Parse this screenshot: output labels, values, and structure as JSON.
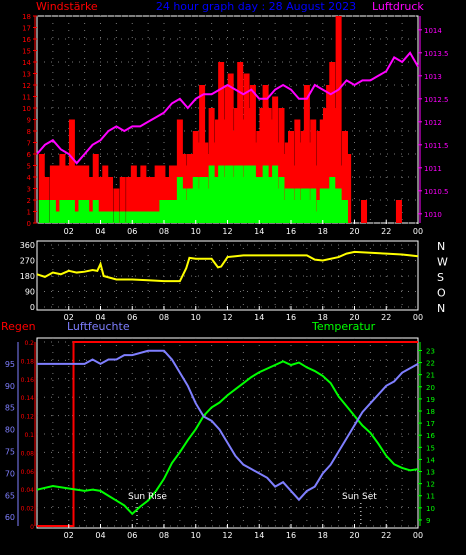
{
  "header": {
    "title": "24 hour graph day : 28 August 2023",
    "left_label": "Windstärke",
    "right_label": "Luftdruck",
    "colors": {
      "title": "#0000ff",
      "wind": "#ff0000",
      "pressure": "#ff00ff"
    }
  },
  "bottom_header": {
    "rain_label": "Regen",
    "humidity_label": "Luftfeuchte",
    "temperature_label": "Temperatur",
    "colors": {
      "rain": "#ff0000",
      "humidity": "#7f7fff",
      "temperature": "#00ff00"
    }
  },
  "annotations": {
    "sun_rise": "Sun Rise",
    "sun_set": "Sun Set"
  },
  "chart_data": [
    {
      "type": "bar",
      "title": "24 hour graph day : 28 August 2023",
      "x_ticks": [
        "02",
        "04",
        "06",
        "08",
        "10",
        "12",
        "14",
        "16",
        "18",
        "20",
        "22",
        "00"
      ],
      "y_left": {
        "label": "Windstärke",
        "ticks": [
          "0",
          "1",
          "2",
          "3",
          "4",
          "5",
          "6",
          "7",
          "8",
          "9",
          "10",
          "11",
          "12",
          "13",
          "14",
          "15",
          "16",
          "17",
          "18"
        ],
        "range": [
          0,
          18
        ]
      },
      "y_right": {
        "label": "Luftdruck",
        "ticks": [
          "1010",
          "1010.5",
          "1011",
          "1011.5",
          "1012",
          "1012.5",
          "1013",
          "1013.5",
          "1014"
        ],
        "range": [
          1009.8,
          1014.3
        ]
      },
      "series": [
        {
          "name": "Windstärke",
          "kind": "gust-bars",
          "color": "#ff0000",
          "x": [
            0.3,
            0.6,
            1.0,
            1.3,
            1.6,
            1.9,
            2.2,
            2.5,
            2.8,
            3.1,
            3.4,
            3.7,
            4.0,
            4.3,
            4.6,
            5.0,
            5.4,
            5.8,
            6.1,
            6.4,
            6.7,
            7.0,
            7.3,
            7.6,
            7.9,
            8.2,
            8.5,
            8.8,
            9.0,
            9.2,
            9.4,
            9.6,
            9.8,
            10.0,
            10.2,
            10.4,
            10.6,
            10.8,
            11.0,
            11.2,
            11.4,
            11.6,
            11.8,
            12.0,
            12.2,
            12.4,
            12.6,
            12.8,
            13.0,
            13.2,
            13.4,
            13.6,
            13.8,
            14.0,
            14.2,
            14.4,
            14.6,
            14.8,
            15.0,
            15.2,
            15.4,
            15.6,
            15.8,
            16.0,
            16.2,
            16.4,
            16.6,
            16.8,
            17.0,
            17.2,
            17.4,
            17.6,
            17.8,
            18.0,
            18.2,
            18.4,
            18.6,
            18.8,
            19.0,
            19.2,
            19.4,
            19.6,
            20.6,
            22.8
          ],
          "values": [
            6,
            4,
            5,
            5,
            6,
            5,
            9,
            5,
            5,
            5,
            4,
            6,
            4,
            5,
            4,
            3,
            4,
            4,
            5,
            4,
            5,
            4,
            4,
            5,
            5,
            4,
            5,
            5,
            9,
            6,
            5,
            6,
            6,
            8,
            7,
            12,
            7,
            6,
            10,
            7,
            9,
            14,
            9,
            12,
            13,
            8,
            10,
            14,
            9,
            13,
            10,
            12,
            7,
            8,
            10,
            12,
            10,
            9,
            11,
            7,
            10,
            6,
            7,
            8,
            5,
            9,
            7,
            8,
            12,
            7,
            9,
            5,
            8,
            9,
            10,
            12,
            14,
            10,
            18,
            5,
            8,
            6,
            2,
            2
          ]
        },
        {
          "name": "Windstärke (avg)",
          "kind": "avg-bars",
          "color": "#00ff00",
          "x": [
            0.3,
            0.6,
            1.0,
            1.3,
            1.6,
            1.9,
            2.2,
            2.5,
            2.8,
            3.1,
            3.4,
            3.7,
            4.0,
            4.3,
            4.6,
            5.0,
            5.4,
            5.8,
            6.1,
            6.4,
            6.7,
            7.0,
            7.3,
            7.6,
            7.9,
            8.2,
            8.5,
            8.8,
            9.0,
            9.2,
            9.4,
            9.6,
            9.8,
            10.0,
            10.2,
            10.4,
            10.6,
            10.8,
            11.0,
            11.2,
            11.4,
            11.6,
            11.8,
            12.0,
            12.2,
            12.4,
            12.6,
            12.8,
            13.0,
            13.2,
            13.4,
            13.6,
            13.8,
            14.0,
            14.2,
            14.4,
            14.6,
            14.8,
            15.0,
            15.2,
            15.4,
            15.6,
            15.8,
            16.0,
            16.2,
            16.4,
            16.6,
            16.8,
            17.0,
            17.2,
            17.4,
            17.6,
            17.8,
            18.0,
            18.2,
            18.4,
            18.6,
            18.8,
            19.0,
            19.2,
            19.4
          ],
          "values": [
            2,
            2,
            2,
            1,
            2,
            2,
            2,
            1,
            2,
            2,
            1,
            2,
            1,
            1,
            1,
            1,
            1,
            1,
            1,
            1,
            1,
            1,
            1,
            1,
            2,
            2,
            2,
            2,
            4,
            3,
            2,
            3,
            3,
            4,
            3,
            4,
            4,
            3,
            5,
            4,
            4,
            5,
            4,
            5,
            5,
            4,
            5,
            5,
            4,
            5,
            5,
            5,
            4,
            4,
            4,
            5,
            4,
            4,
            5,
            3,
            4,
            2,
            3,
            3,
            2,
            3,
            2,
            3,
            3,
            2,
            3,
            1,
            2,
            3,
            3,
            3,
            4,
            3,
            3,
            2,
            2
          ]
        },
        {
          "name": "Luftdruck",
          "kind": "line",
          "color": "#ff00ff",
          "x": [
            0,
            0.5,
            1,
            1.5,
            2,
            2.5,
            3,
            3.5,
            4,
            4.5,
            5,
            5.5,
            6,
            6.5,
            7,
            7.5,
            8,
            8.5,
            9,
            9.5,
            10,
            10.5,
            11,
            11.5,
            12,
            12.5,
            13,
            13.5,
            14,
            14.5,
            15,
            15.5,
            16,
            16.5,
            17,
            17.5,
            18,
            18.5,
            19,
            19.5,
            20,
            20.5,
            21,
            21.5,
            22,
            22.5,
            23,
            23.5,
            24
          ],
          "values": [
            1011.3,
            1011.5,
            1011.6,
            1011.4,
            1011.3,
            1011.1,
            1011.3,
            1011.5,
            1011.6,
            1011.8,
            1011.9,
            1011.8,
            1011.9,
            1011.9,
            1012.0,
            1012.1,
            1012.2,
            1012.4,
            1012.5,
            1012.3,
            1012.5,
            1012.6,
            1012.6,
            1012.7,
            1012.8,
            1012.7,
            1012.6,
            1012.7,
            1012.5,
            1012.5,
            1012.7,
            1012.8,
            1012.7,
            1012.5,
            1012.5,
            1012.8,
            1012.7,
            1012.6,
            1012.7,
            1012.9,
            1012.8,
            1012.9,
            1012.9,
            1013.0,
            1013.1,
            1013.4,
            1013.3,
            1013.5,
            1013.2
          ]
        }
      ]
    },
    {
      "type": "line",
      "title": "",
      "x_ticks": [
        "02",
        "04",
        "06",
        "08",
        "10",
        "12",
        "14",
        "16",
        "18",
        "20",
        "22",
        "00"
      ],
      "y_left": {
        "ticks": [
          "0",
          "90",
          "180",
          "270",
          "360"
        ],
        "range": [
          0,
          360
        ]
      },
      "y_right": {
        "ticks": [
          "N",
          "W",
          "S",
          "O",
          "N"
        ]
      },
      "series": [
        {
          "name": "Windrichtung",
          "color": "#ffff00",
          "x": [
            0,
            0.5,
            1,
            1.5,
            2,
            2.5,
            3,
            3.5,
            3.8,
            4.0,
            4.2,
            5,
            6,
            7,
            8,
            9,
            9.4,
            9.6,
            10,
            11,
            11.4,
            11.6,
            12,
            12.5,
            13,
            14,
            15,
            16,
            17,
            17.5,
            18,
            19,
            19.5,
            20,
            21,
            22,
            23,
            24
          ],
          "values": [
            190,
            175,
            200,
            190,
            210,
            200,
            205,
            215,
            210,
            250,
            180,
            160,
            160,
            155,
            150,
            150,
            225,
            285,
            280,
            280,
            230,
            235,
            290,
            295,
            300,
            300,
            300,
            300,
            300,
            275,
            270,
            290,
            310,
            320,
            315,
            310,
            305,
            295
          ]
        }
      ]
    },
    {
      "type": "line",
      "title": "",
      "x_ticks": [
        "02",
        "04",
        "06",
        "08",
        "10",
        "12",
        "14",
        "16",
        "18",
        "20",
        "22",
        "00"
      ],
      "y_left_humidity": {
        "label": "Luftfeuchte",
        "ticks": [
          "60",
          "65",
          "70",
          "75",
          "80",
          "85",
          "90",
          "95"
        ],
        "range": [
          58,
          100
        ]
      },
      "y_left_rain": {
        "label": "Regen",
        "ticks": [
          "0",
          "0.02",
          "0.04",
          "0.06",
          "0.08",
          "0.1",
          "0.12",
          "0.14",
          "0.16",
          "0.18",
          "0.2"
        ],
        "range": [
          0,
          0.2
        ]
      },
      "y_right": {
        "label": "Temperatur",
        "ticks": [
          "9",
          "10",
          "11",
          "12",
          "13",
          "14",
          "15",
          "16",
          "17",
          "18",
          "19",
          "20",
          "21",
          "22",
          "23"
        ],
        "range": [
          8.5,
          23.7
        ]
      },
      "series": [
        {
          "name": "Regen",
          "color": "#ff0000",
          "x": [
            0,
            2.3,
            2.3,
            24
          ],
          "values": [
            0,
            0,
            0.2,
            0.2
          ]
        },
        {
          "name": "Luftfeuchte",
          "color": "#7f7fff",
          "x": [
            0,
            1,
            2,
            2.3,
            3,
            3.5,
            4,
            4.5,
            5,
            5.5,
            6,
            7,
            8,
            8.5,
            9,
            9.5,
            10,
            10.5,
            11,
            11.5,
            12,
            12.5,
            13,
            13.5,
            14,
            14.5,
            15,
            15.5,
            16,
            16.5,
            17,
            17.5,
            18,
            18.5,
            19,
            19.5,
            20,
            20.5,
            21,
            21.5,
            22,
            22.5,
            23,
            23.5,
            24
          ],
          "values": [
            95,
            95,
            95,
            95,
            95,
            96,
            95,
            96,
            96,
            97,
            97,
            98,
            98,
            96,
            93,
            90,
            86,
            83,
            82,
            80,
            77,
            74,
            72,
            71,
            70,
            69,
            67,
            68,
            66,
            64,
            66,
            67,
            70,
            72,
            75,
            78,
            81,
            84,
            86,
            88,
            90,
            91,
            93,
            94,
            95
          ]
        },
        {
          "name": "Temperatur",
          "color": "#00ff00",
          "x": [
            0,
            1,
            2,
            3,
            3.5,
            4,
            4.5,
            5,
            5.5,
            6,
            6.5,
            7,
            7.5,
            8,
            8.5,
            9,
            9.5,
            10,
            10.5,
            11,
            11.5,
            12,
            12.5,
            13,
            13.5,
            14,
            14.5,
            15,
            15.5,
            16,
            16.5,
            17,
            17.5,
            18,
            18.5,
            19,
            19.5,
            20,
            20.5,
            21,
            21.5,
            22,
            22.5,
            23,
            23.5,
            24
          ],
          "values": [
            11.5,
            11.8,
            11.6,
            11.4,
            11.5,
            11.4,
            11.0,
            10.6,
            10.2,
            9.5,
            10.1,
            10.6,
            11.4,
            12.4,
            13.7,
            14.6,
            15.6,
            16.5,
            17.6,
            18.3,
            18.7,
            19.3,
            19.8,
            20.3,
            20.8,
            21.2,
            21.5,
            21.8,
            22.1,
            21.8,
            22.0,
            21.6,
            21.3,
            20.9,
            20.3,
            19.2,
            18.4,
            17.6,
            16.8,
            16.2,
            15.3,
            14.3,
            13.6,
            13.3,
            13.1,
            13.2
          ]
        }
      ]
    }
  ]
}
